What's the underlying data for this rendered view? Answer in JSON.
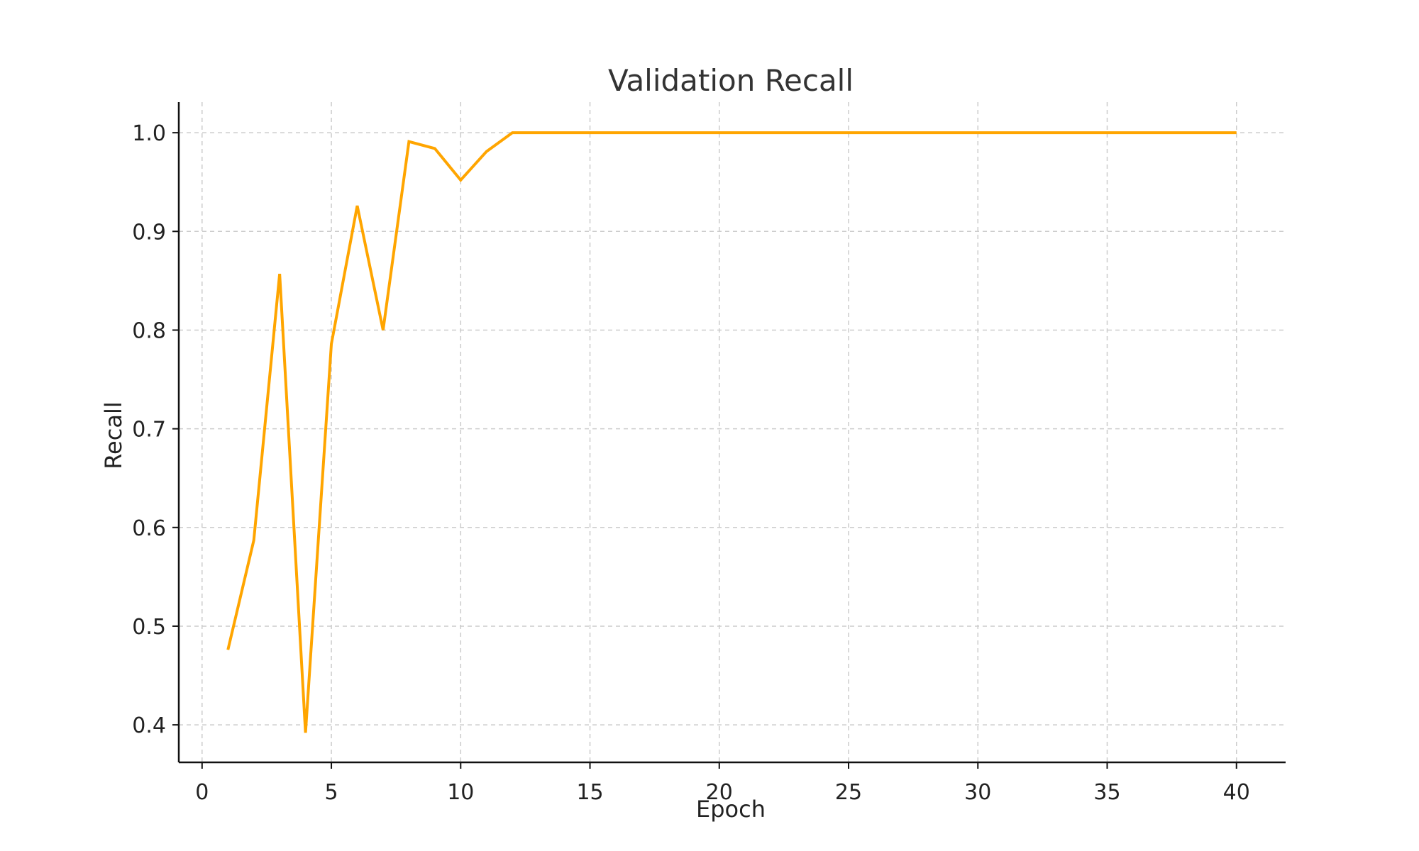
{
  "chart_data": {
    "type": "line",
    "title": "Validation Recall",
    "xlabel": "Epoch",
    "ylabel": "Recall",
    "xlim": [
      -0.9,
      41.9
    ],
    "ylim": [
      0.362,
      1.031
    ],
    "x_ticks": [
      0,
      5,
      10,
      15,
      20,
      25,
      30,
      35,
      40
    ],
    "y_ticks": [
      0.4,
      0.5,
      0.6,
      0.7,
      0.8,
      0.9,
      1.0
    ],
    "x_tick_labels": [
      "0",
      "5",
      "10",
      "15",
      "20",
      "25",
      "30",
      "35",
      "40"
    ],
    "y_tick_labels": [
      "0.4",
      "0.5",
      "0.6",
      "0.7",
      "0.8",
      "0.9",
      "1.0"
    ],
    "grid": true,
    "legend": "none",
    "series": [
      {
        "color": "#ffa500",
        "x": [
          1,
          2,
          3,
          4,
          5,
          6,
          7,
          8,
          9,
          10,
          11,
          12,
          13,
          14,
          15,
          16,
          17,
          18,
          19,
          20,
          21,
          22,
          23,
          24,
          25,
          26,
          27,
          28,
          29,
          30,
          31,
          32,
          33,
          34,
          35,
          36,
          37,
          38,
          39,
          40
        ],
        "values": [
          0.476,
          0.587,
          0.857,
          0.392,
          0.786,
          0.926,
          0.8,
          0.991,
          0.984,
          0.952,
          0.981,
          1.0,
          1.0,
          1.0,
          1.0,
          1.0,
          1.0,
          1.0,
          1.0,
          1.0,
          1.0,
          1.0,
          1.0,
          1.0,
          1.0,
          1.0,
          1.0,
          1.0,
          1.0,
          1.0,
          1.0,
          1.0,
          1.0,
          1.0,
          1.0,
          1.0,
          1.0,
          1.0,
          1.0,
          1.0
        ]
      }
    ]
  }
}
